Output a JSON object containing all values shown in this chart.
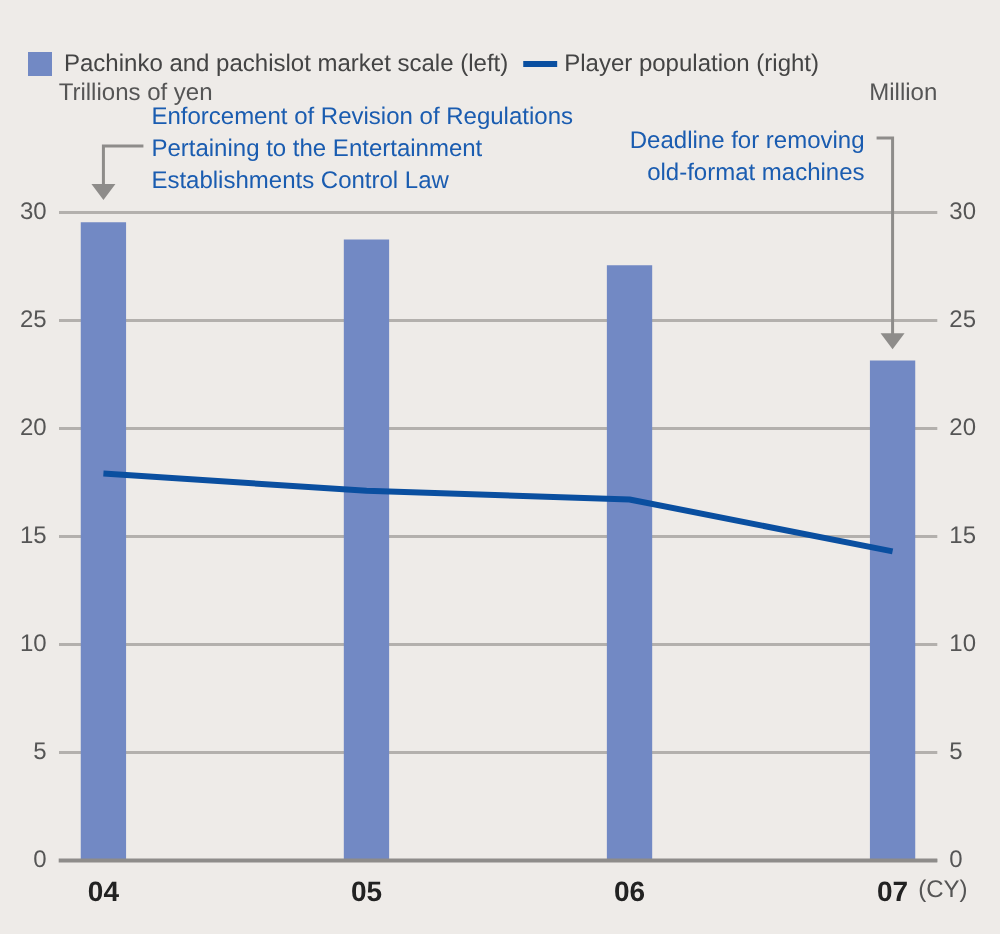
{
  "chart_data": {
    "type": "bar",
    "xlabel": "(CY)",
    "ylabel": "Trillions of yen",
    "y2label": "Million",
    "categories": [
      "04",
      "05",
      "06",
      "07"
    ],
    "series": [
      {
        "name": "Pachinko and pachislot market scale (left)",
        "color": "#7289c4",
        "values": [
          29.5,
          28.7,
          27.5,
          23.1
        ]
      },
      {
        "name": "Player population (right)",
        "type": "line",
        "axis": "y2",
        "color": "#0a4fa0",
        "values": [
          17.9,
          17.1,
          16.7,
          14.3
        ]
      }
    ],
    "ylim": [
      0,
      30
    ],
    "yticks": [
      0,
      5,
      10,
      15,
      20,
      25,
      30
    ],
    "y2lim": [
      0,
      30
    ],
    "y2ticks": [
      0,
      5,
      10,
      15,
      20,
      25,
      30
    ],
    "grid": "y",
    "legend": "top left",
    "marker": "none",
    "line_style": "solid",
    "annotations": [
      {
        "text": "Enforcement of Revision of Regulations Pertaining to the Entertainment Establishments Control Law",
        "x": "04",
        "y": 30
      },
      "Deadline for removing old-format machines"
    ]
  }
}
